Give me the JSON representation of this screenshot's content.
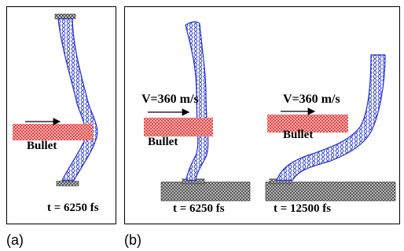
{
  "panel_a": {
    "bullet_label": "Bullet",
    "time_label": "t = 6250 fs",
    "caption": "(a)"
  },
  "panel_b": {
    "caption": "(b)",
    "left": {
      "velocity_label": "V=360 m/s",
      "bullet_label": "Bullet",
      "time_label": "t = 6250 fs"
    },
    "right": {
      "velocity_label": "V=360 m/s",
      "bullet_label": "Bullet",
      "time_label": "t = 12500 fs"
    }
  },
  "colors": {
    "nanotube": "#2030d0",
    "bullet": "#e03030",
    "substrate": "#404040"
  }
}
